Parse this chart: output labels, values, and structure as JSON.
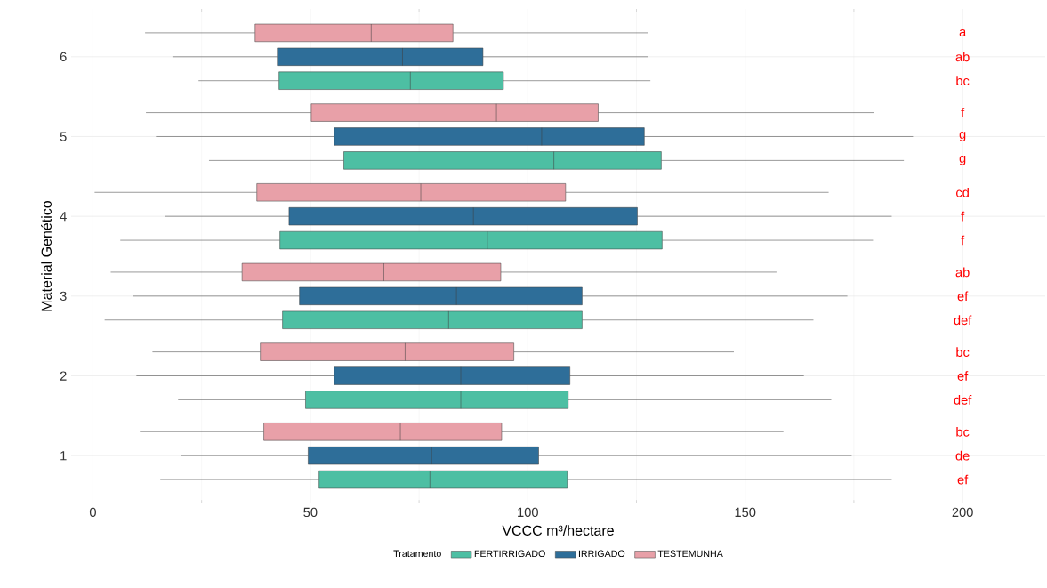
{
  "chart_data": {
    "type": "box",
    "orientation": "horizontal",
    "xlabel": "VCCC m³/hectare",
    "ylabel": "Material Genético",
    "legend_title": "Tratamento",
    "legend": "bottom",
    "grid": true,
    "categories": [
      "6",
      "5",
      "4",
      "3",
      "2",
      "1"
    ],
    "xlim": [
      -5,
      219
    ],
    "xticks": [
      0,
      50,
      100,
      150,
      200
    ],
    "series": [
      {
        "name": "FERTIRRIGADO",
        "color": "#4dbfa3",
        "boxes": [
          {
            "low": 24.3,
            "q1": 42.8,
            "median": 73.0,
            "q3": 94.4,
            "high": 128.2
          },
          {
            "low": 26.7,
            "q1": 57.7,
            "median": 106.0,
            "q3": 130.7,
            "high": 186.5
          },
          {
            "low": 6.3,
            "q1": 43.0,
            "median": 90.7,
            "q3": 130.9,
            "high": 179.4
          },
          {
            "low": 2.7,
            "q1": 43.6,
            "median": 81.8,
            "q3": 112.5,
            "high": 165.7
          },
          {
            "low": 19.6,
            "q1": 48.9,
            "median": 84.6,
            "q3": 109.3,
            "high": 169.8
          },
          {
            "low": 15.5,
            "q1": 52.0,
            "median": 77.5,
            "q3": 109.1,
            "high": 183.7
          }
        ]
      },
      {
        "name": "IRRIGADO",
        "color": "#2e6e99",
        "boxes": [
          {
            "low": 18.3,
            "q1": 42.4,
            "median": 71.2,
            "q3": 89.7,
            "high": 127.6
          },
          {
            "low": 14.5,
            "q1": 55.5,
            "median": 103.2,
            "q3": 126.8,
            "high": 188.6
          },
          {
            "low": 16.5,
            "q1": 45.1,
            "median": 87.5,
            "q3": 125.2,
            "high": 183.7
          },
          {
            "low": 9.2,
            "q1": 47.5,
            "median": 83.6,
            "q3": 112.5,
            "high": 173.5
          },
          {
            "low": 10.0,
            "q1": 55.5,
            "median": 84.6,
            "q3": 109.7,
            "high": 163.5
          },
          {
            "low": 20.2,
            "q1": 49.5,
            "median": 77.9,
            "q3": 102.5,
            "high": 174.5
          }
        ]
      },
      {
        "name": "TESTEMUNHA",
        "color": "#e8a0a8",
        "boxes": [
          {
            "low": 12.0,
            "q1": 37.3,
            "median": 64.0,
            "q3": 82.8,
            "high": 127.6
          },
          {
            "low": 12.2,
            "q1": 50.2,
            "median": 92.8,
            "q3": 116.2,
            "high": 179.6
          },
          {
            "low": 0.4,
            "q1": 37.7,
            "median": 75.4,
            "q3": 108.7,
            "high": 169.2
          },
          {
            "low": 4.1,
            "q1": 34.3,
            "median": 66.9,
            "q3": 93.8,
            "high": 157.2
          },
          {
            "low": 13.7,
            "q1": 38.5,
            "median": 71.8,
            "q3": 96.8,
            "high": 147.4
          },
          {
            "low": 10.8,
            "q1": 39.3,
            "median": 70.7,
            "q3": 94.0,
            "high": 158.8
          }
        ]
      }
    ],
    "annotations": [
      "a",
      "ab",
      "bc",
      "f",
      "g",
      "g",
      "cd",
      "f",
      "f",
      "ab",
      "ef",
      "def",
      "bc",
      "ef",
      "def",
      "bc",
      "de",
      "ef"
    ]
  }
}
